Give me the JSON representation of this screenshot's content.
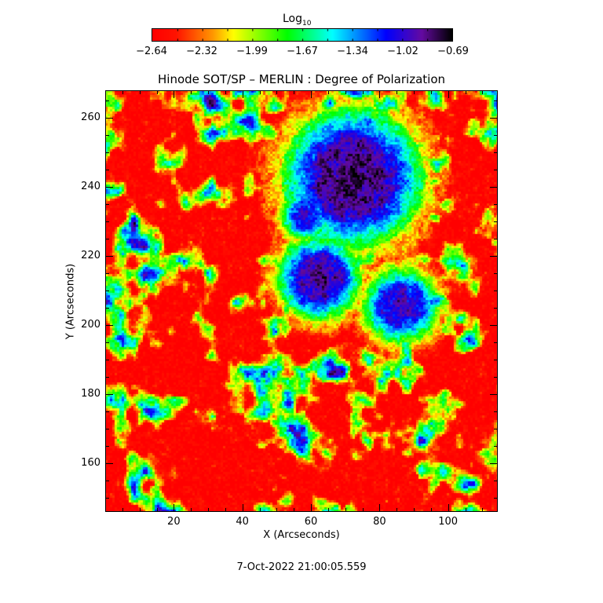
{
  "chart_data": {
    "type": "heatmap",
    "title": "Hinode SOT/SP – MERLIN : Degree of Polarization",
    "xlabel": "X (Arcseconds)",
    "ylabel": "Y (Arcseconds)",
    "xlim": [
      0,
      114.5
    ],
    "ylim": [
      146,
      268
    ],
    "xticks": [
      "20",
      "40",
      "60",
      "80",
      "100"
    ],
    "xtick_values": [
      20,
      40,
      60,
      80,
      100
    ],
    "yticks": [
      "160",
      "180",
      "200",
      "220",
      "240",
      "260"
    ],
    "ytick_values": [
      160,
      180,
      200,
      220,
      240,
      260
    ],
    "colorbar": {
      "label_base": "Log",
      "label_sub": "10",
      "range": [
        -2.64,
        -0.69
      ],
      "tick_labels": [
        "−2.64",
        "−2.32",
        "−1.99",
        "−1.67",
        "−1.34",
        "−1.02",
        "−0.69"
      ],
      "colormap": [
        "#ff0000",
        "#ff8000",
        "#ffff00",
        "#00ff00",
        "#00ffff",
        "#0000ff",
        "#6a0aa0",
        "#000000"
      ]
    }
  },
  "timestamp": "7-Oct-2022 21:00:05.559"
}
